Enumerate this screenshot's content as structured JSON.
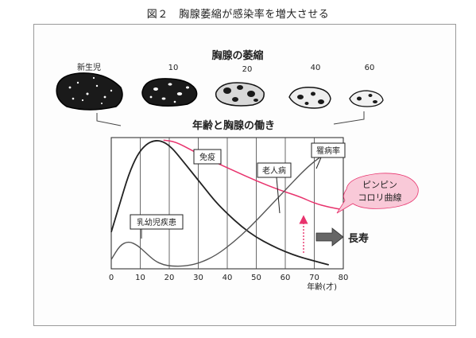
{
  "figure_title": "図２　胸腺萎縮が感染率を増大させる",
  "thymus": {
    "heading": "胸腺の萎縮",
    "stages": [
      "新生児",
      "10",
      "20",
      "40",
      "60"
    ]
  },
  "chart": {
    "title": "年齢と胸腺の働き",
    "x_ticks": [
      "0",
      "10",
      "20",
      "30",
      "40",
      "50",
      "60",
      "70",
      "80"
    ],
    "x_axis_label": "年齢(才)"
  },
  "labels": {
    "immunity": "免疫",
    "morbidity": "罹病率",
    "elderly_disease": "老人病",
    "infant_disease": "乳幼児疾患",
    "pinpin_line1": "ピンピン",
    "pinpin_line2": "コロリ曲線",
    "longevity": "長寿"
  },
  "colors": {
    "immunity_curve": "#e8336d",
    "callout_fill": "#f9c9d8",
    "ink": "#222222"
  },
  "chart_data": {
    "type": "line",
    "x_ticks": [
      0,
      10,
      20,
      30,
      40,
      50,
      60,
      70,
      80
    ],
    "xlim": [
      0,
      80
    ],
    "y_ticks": [],
    "series": [
      {
        "x": [
          0,
          3,
          6,
          9,
          12,
          15,
          18,
          21,
          24,
          28,
          32,
          36,
          40,
          45,
          50,
          55,
          60,
          65,
          70,
          75
        ],
        "y": [
          28,
          50,
          72,
          87,
          95,
          98,
          97,
          92,
          84,
          73,
          62,
          51,
          42,
          32,
          24,
          18,
          13,
          9,
          6,
          3
        ]
      },
      {
        "x": [
          18,
          22,
          28,
          35,
          42,
          50,
          58,
          65,
          70,
          75,
          80
        ],
        "y": [
          98,
          97,
          90,
          82,
          75,
          67,
          60,
          55,
          50,
          47,
          45
        ]
      },
      {
        "x": [
          0,
          3,
          6,
          9,
          12,
          15,
          18,
          21,
          25,
          30,
          36,
          42,
          48,
          54,
          60,
          66,
          70,
          74,
          78
        ],
        "y": [
          7,
          18,
          21,
          18,
          12,
          6,
          3,
          2,
          2,
          4,
          10,
          20,
          32,
          46,
          60,
          74,
          82,
          88,
          90
        ]
      }
    ]
  }
}
